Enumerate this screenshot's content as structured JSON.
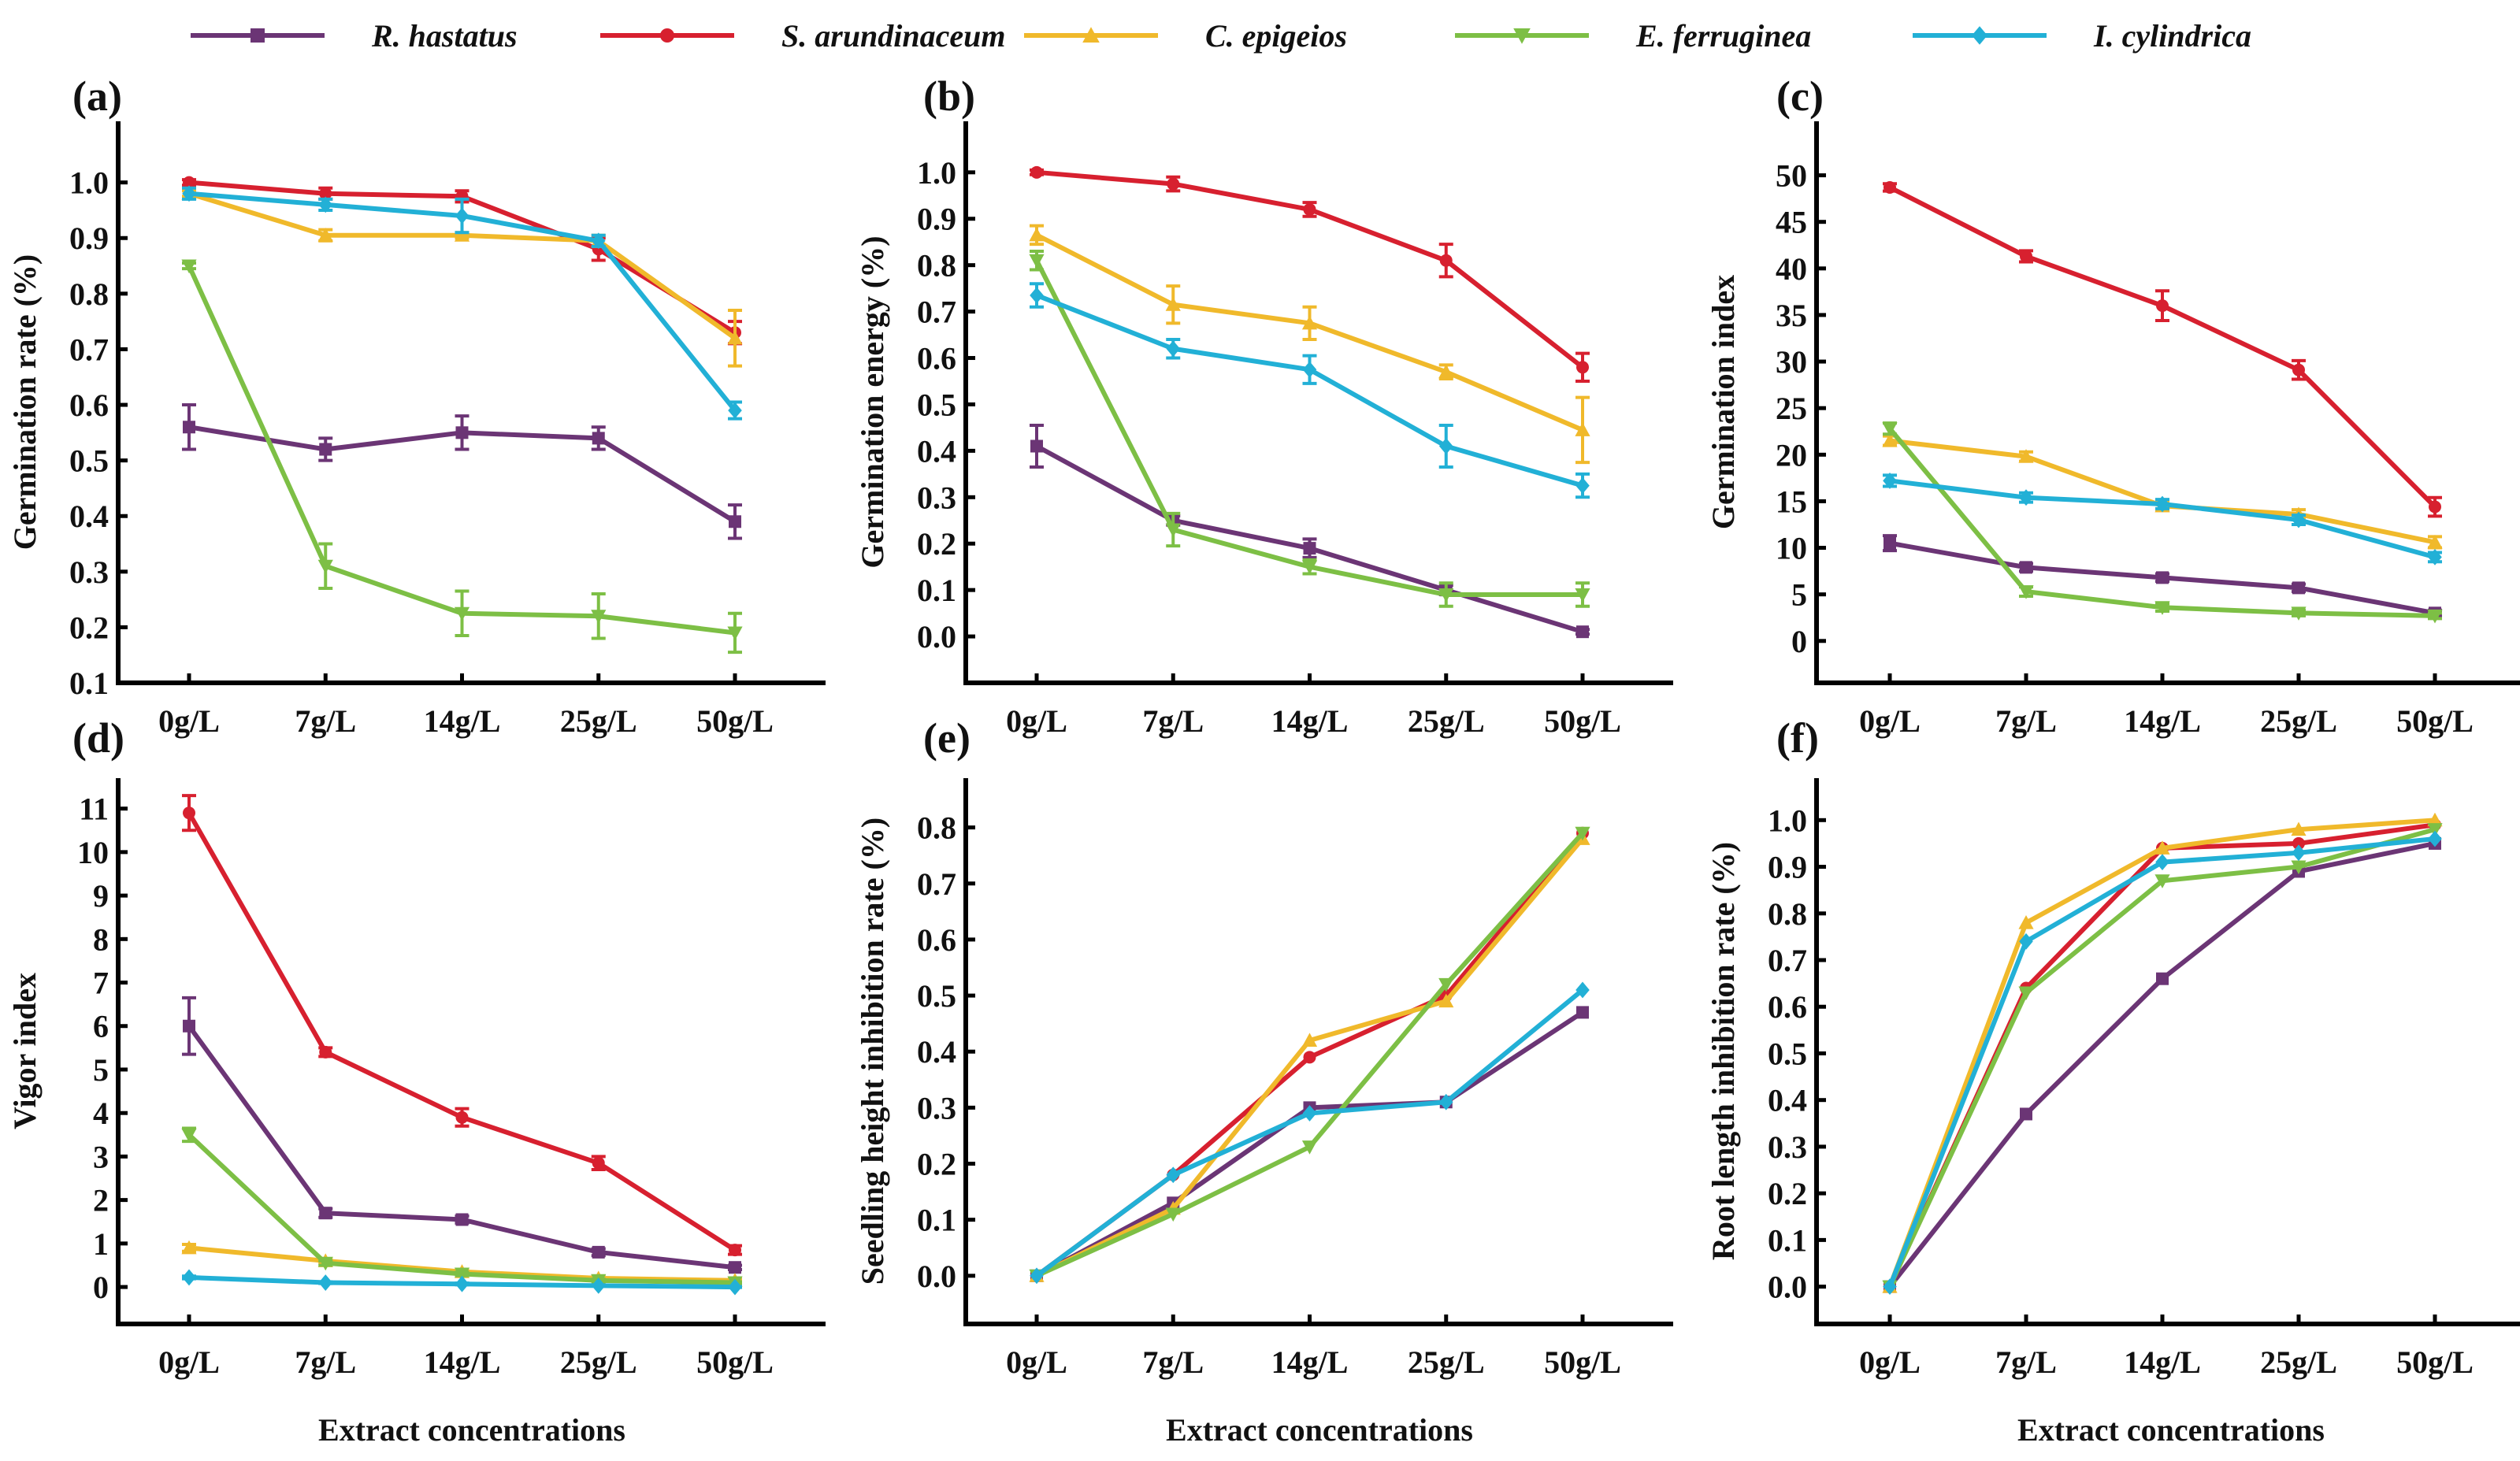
{
  "legend": [
    {
      "name": "R. hastatus",
      "color": "#6b3575",
      "marker": "square"
    },
    {
      "name": "S. arundinaceum",
      "color": "#d7202f",
      "marker": "circle"
    },
    {
      "name": "C. epigeios",
      "color": "#f0b92b",
      "marker": "triangle-up"
    },
    {
      "name": "E. ferruginea",
      "color": "#7dbf45",
      "marker": "triangle-down"
    },
    {
      "name": "I. cylindrica",
      "color": "#22b0d6",
      "marker": "diamond"
    }
  ],
  "chart_data": [
    {
      "panel": "(a)",
      "type": "line",
      "ylabel": "Germination rate (%)",
      "xlabel": "",
      "categories": [
        "0g/L",
        "7g/L",
        "14g/L",
        "25g/L",
        "50g/L"
      ],
      "ylim": [
        0.1,
        1.11
      ],
      "yticks": [
        0.1,
        0.2,
        0.3,
        0.4,
        0.5,
        0.6,
        0.7,
        0.8,
        0.9,
        1.0
      ],
      "ytick_decimals": 1,
      "series": [
        {
          "name": "R. hastatus",
          "values": [
            0.56,
            0.52,
            0.55,
            0.54,
            0.39
          ],
          "errors": [
            0.04,
            0.02,
            0.03,
            0.02,
            0.03
          ]
        },
        {
          "name": "S. arundinaceum",
          "values": [
            1.0,
            0.98,
            0.975,
            0.88,
            0.73
          ],
          "errors": [
            0.005,
            0.01,
            0.01,
            0.02,
            0.02
          ]
        },
        {
          "name": "C. epigeios",
          "values": [
            0.98,
            0.905,
            0.905,
            0.895,
            0.72
          ],
          "errors": [
            0.005,
            0.01,
            0.005,
            0.01,
            0.05
          ]
        },
        {
          "name": "E. ferruginea",
          "values": [
            0.85,
            0.31,
            0.225,
            0.22,
            0.19
          ],
          "errors": [
            0.005,
            0.04,
            0.04,
            0.04,
            0.035
          ]
        },
        {
          "name": "I. cylindrica",
          "values": [
            0.98,
            0.96,
            0.94,
            0.895,
            0.59
          ],
          "errors": [
            0.01,
            0.01,
            0.03,
            0.01,
            0.015
          ]
        }
      ]
    },
    {
      "panel": "(b)",
      "type": "line",
      "ylabel": "Germination energy (%)",
      "xlabel": "",
      "categories": [
        "0g/L",
        "7g/L",
        "14g/L",
        "25g/L",
        "50g/L"
      ],
      "ylim": [
        -0.1,
        1.11
      ],
      "yticks": [
        0.0,
        0.1,
        0.2,
        0.3,
        0.4,
        0.5,
        0.6,
        0.7,
        0.8,
        0.9,
        1.0
      ],
      "ytick_decimals": 1,
      "series": [
        {
          "name": "R. hastatus",
          "values": [
            0.41,
            0.25,
            0.19,
            0.1,
            0.01
          ],
          "errors": [
            0.045,
            0.01,
            0.02,
            0.01,
            0.005
          ]
        },
        {
          "name": "S. arundinaceum",
          "values": [
            1.0,
            0.975,
            0.92,
            0.81,
            0.58
          ],
          "errors": [
            0.005,
            0.015,
            0.015,
            0.035,
            0.03
          ]
        },
        {
          "name": "C. epigeios",
          "values": [
            0.865,
            0.715,
            0.675,
            0.57,
            0.445
          ],
          "errors": [
            0.02,
            0.04,
            0.035,
            0.015,
            0.07
          ]
        },
        {
          "name": "E. ferruginea",
          "values": [
            0.81,
            0.23,
            0.15,
            0.09,
            0.09
          ],
          "errors": [
            0.02,
            0.035,
            0.015,
            0.025,
            0.025
          ]
        },
        {
          "name": "I. cylindrica",
          "values": [
            0.735,
            0.62,
            0.575,
            0.41,
            0.325
          ],
          "errors": [
            0.025,
            0.02,
            0.03,
            0.045,
            0.025
          ]
        }
      ]
    },
    {
      "panel": "(c)",
      "type": "line",
      "ylabel": "Germination index",
      "xlabel": "",
      "categories": [
        "0g/L",
        "7g/L",
        "14g/L",
        "25g/L",
        "50g/L"
      ],
      "ylim": [
        -4.5,
        55.8
      ],
      "yticks": [
        0,
        5,
        10,
        15,
        20,
        25,
        30,
        35,
        40,
        45,
        50
      ],
      "ytick_decimals": 0,
      "series": [
        {
          "name": "R. hastatus",
          "values": [
            10.5,
            7.9,
            6.8,
            5.7,
            3.0
          ],
          "errors": [
            0.8,
            0.4,
            0.4,
            0.4,
            0.3
          ]
        },
        {
          "name": "S. arundinaceum",
          "values": [
            48.7,
            41.3,
            36.0,
            29.1,
            14.4
          ],
          "errors": [
            0.4,
            0.6,
            1.6,
            1.0,
            1.0
          ]
        },
        {
          "name": "C. epigeios",
          "values": [
            21.5,
            19.8,
            14.5,
            13.6,
            10.6
          ],
          "errors": [
            0.5,
            0.5,
            0.5,
            0.5,
            0.6
          ]
        },
        {
          "name": "E. ferruginea",
          "values": [
            22.8,
            5.3,
            3.6,
            3.0,
            2.7
          ],
          "errors": [
            0.6,
            0.5,
            0.4,
            0.3,
            0.3
          ]
        },
        {
          "name": "I. cylindrica",
          "values": [
            17.2,
            15.4,
            14.7,
            13.0,
            9.0
          ],
          "errors": [
            0.6,
            0.5,
            0.5,
            0.5,
            0.5
          ]
        }
      ]
    },
    {
      "panel": "(d)",
      "type": "line",
      "ylabel": "Vigor index",
      "xlabel": "Extract concentrations",
      "categories": [
        "0g/L",
        "7g/L",
        "14g/L",
        "25g/L",
        "50g/L"
      ],
      "ylim": [
        -0.85,
        11.7
      ],
      "yticks": [
        0,
        1,
        2,
        3,
        4,
        5,
        6,
        7,
        8,
        9,
        10,
        11
      ],
      "ytick_decimals": 0,
      "series": [
        {
          "name": "R. hastatus",
          "values": [
            6.0,
            1.7,
            1.55,
            0.8,
            0.45
          ],
          "errors": [
            0.65,
            0.1,
            0.08,
            0.08,
            0.05
          ]
        },
        {
          "name": "S. arundinaceum",
          "values": [
            10.9,
            5.4,
            3.9,
            2.85,
            0.85
          ],
          "errors": [
            0.4,
            0.1,
            0.2,
            0.15,
            0.1
          ]
        },
        {
          "name": "C. epigeios",
          "values": [
            0.9,
            0.6,
            0.35,
            0.2,
            0.15
          ],
          "errors": [
            0.08,
            0.05,
            0.05,
            0.05,
            0.03
          ]
        },
        {
          "name": "E. ferruginea",
          "values": [
            3.5,
            0.55,
            0.3,
            0.15,
            0.1
          ],
          "errors": [
            0.15,
            0.05,
            0.04,
            0.03,
            0.02
          ]
        },
        {
          "name": "I. cylindrica",
          "values": [
            0.22,
            0.1,
            0.07,
            0.03,
            0.0
          ],
          "errors": [
            0.03,
            0.02,
            0.02,
            0.01,
            0.01
          ]
        }
      ]
    },
    {
      "panel": "(e)",
      "type": "line",
      "ylabel": "Seedling height inhibition rate (%)",
      "xlabel": "Extract concentrations",
      "categories": [
        "0g/L",
        "7g/L",
        "14g/L",
        "25g/L",
        "50g/L"
      ],
      "ylim": [
        -0.086,
        0.888
      ],
      "yticks": [
        0.0,
        0.1,
        0.2,
        0.3,
        0.4,
        0.5,
        0.6,
        0.7,
        0.8
      ],
      "ytick_decimals": 1,
      "series": [
        {
          "name": "R. hastatus",
          "values": [
            0,
            0.13,
            0.3,
            0.31,
            0.47
          ]
        },
        {
          "name": "S. arundinaceum",
          "values": [
            0,
            0.18,
            0.39,
            0.5,
            0.79
          ]
        },
        {
          "name": "C. epigeios",
          "values": [
            0,
            0.12,
            0.42,
            0.49,
            0.78
          ]
        },
        {
          "name": "E. ferruginea",
          "values": [
            0,
            0.11,
            0.23,
            0.52,
            0.79
          ]
        },
        {
          "name": "I. cylindrica",
          "values": [
            0,
            0.18,
            0.29,
            0.31,
            0.51
          ]
        }
      ]
    },
    {
      "panel": "(f)",
      "type": "line",
      "ylabel": "Root length inhibition rate (%)",
      "xlabel": "Extract concentrations",
      "categories": [
        "0g/L",
        "7g/L",
        "14g/L",
        "25g/L",
        "50g/L"
      ],
      "ylim": [
        -0.08,
        1.09
      ],
      "yticks": [
        0.0,
        0.1,
        0.2,
        0.3,
        0.4,
        0.5,
        0.6,
        0.7,
        0.8,
        0.9,
        1.0
      ],
      "ytick_decimals": 1,
      "series": [
        {
          "name": "R. hastatus",
          "values": [
            0,
            0.37,
            0.66,
            0.89,
            0.95
          ]
        },
        {
          "name": "S. arundinaceum",
          "values": [
            0,
            0.64,
            0.94,
            0.95,
            0.99
          ]
        },
        {
          "name": "C. epigeios",
          "values": [
            0,
            0.78,
            0.94,
            0.98,
            1.0
          ]
        },
        {
          "name": "E. ferruginea",
          "values": [
            0,
            0.63,
            0.87,
            0.9,
            0.98
          ]
        },
        {
          "name": "I. cylindrica",
          "values": [
            0,
            0.74,
            0.91,
            0.93,
            0.96
          ]
        }
      ]
    }
  ]
}
